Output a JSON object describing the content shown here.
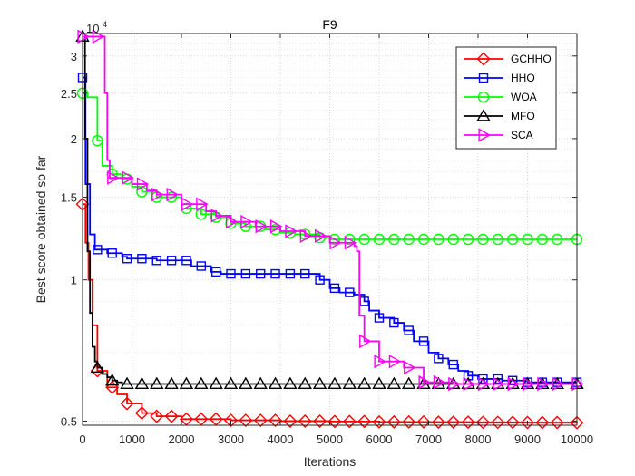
{
  "chart_data": {
    "type": "line",
    "title": "F9",
    "xlabel": "Iterations",
    "ylabel": "Best score obtained so far",
    "exponent_label": "10",
    "exponent_power": "4",
    "xlim": [
      0,
      10000
    ],
    "ylim": [
      4900,
      33500
    ],
    "yscale": "log",
    "grid": true,
    "legend_location": "top-right",
    "x_ticks": [
      0,
      1000,
      2000,
      3000,
      4000,
      5000,
      6000,
      7000,
      8000,
      9000,
      10000
    ],
    "x_tick_labels": [
      "0",
      "1000",
      "2000",
      "3000",
      "4000",
      "5000",
      "6000",
      "7000",
      "8000",
      "9000",
      "10000"
    ],
    "y_ticks": [
      5000,
      10000,
      15000,
      20000,
      25000,
      30000
    ],
    "y_tick_labels": [
      "0.5",
      "1",
      "1.5",
      "2",
      "2.5",
      "3"
    ],
    "series": [
      {
        "name": "GCHHO",
        "color": "#ff0000",
        "marker": "diamond",
        "x": [
          0,
          60,
          120,
          200,
          300,
          500,
          700,
          900,
          1200,
          1500,
          2000,
          3000,
          4000,
          5000,
          6000,
          7000,
          8000,
          9000,
          10000
        ],
        "y": [
          14500,
          12000,
          10000,
          8000,
          6400,
          5900,
          5700,
          5450,
          5200,
          5120,
          5050,
          5020,
          5000,
          4990,
          4980,
          4975,
          4970,
          4965,
          4960
        ]
      },
      {
        "name": "HHO",
        "color": "#0000ff",
        "marker": "square",
        "x": [
          0,
          60,
          150,
          250,
          500,
          600,
          800,
          900,
          1500,
          1900,
          2200,
          2600,
          2800,
          4800,
          5000,
          5200,
          5500,
          5700,
          5800,
          6000,
          6300,
          6500,
          6700,
          7000,
          7200,
          7400,
          7600,
          7800,
          8000,
          8500,
          9000,
          10000
        ],
        "y": [
          27000,
          16000,
          12500,
          11600,
          11400,
          11400,
          11200,
          11100,
          11000,
          11000,
          10700,
          10400,
          10300,
          10000,
          9600,
          9400,
          9300,
          9000,
          8600,
          8300,
          8100,
          7800,
          7400,
          7000,
          6800,
          6600,
          6400,
          6250,
          6150,
          6100,
          6050,
          6050
        ]
      },
      {
        "name": "WOA",
        "color": "#00ff00",
        "marker": "circle",
        "x": [
          0,
          100,
          300,
          400,
          600,
          800,
          1000,
          1200,
          1500,
          2000,
          2400,
          2700,
          3000,
          3300,
          3700,
          4000,
          4300,
          4800,
          5000,
          6000,
          7000,
          8000,
          9000,
          10000
        ],
        "y": [
          25000,
          24500,
          19800,
          17500,
          16800,
          16400,
          15800,
          15400,
          15000,
          14200,
          13800,
          13600,
          13200,
          13000,
          12800,
          12600,
          12500,
          12300,
          12200,
          12200,
          12200,
          12200,
          12200,
          12200
        ]
      },
      {
        "name": "MFO",
        "color": "#000000",
        "marker": "triangle-up",
        "x": [
          0,
          50,
          100,
          150,
          200,
          250,
          300,
          400,
          500,
          600,
          700,
          800,
          1000,
          10000
        ],
        "y": [
          33000,
          20000,
          11500,
          8500,
          7200,
          6700,
          6500,
          6300,
          6200,
          6100,
          6050,
          6000,
          6000,
          6000
        ]
      },
      {
        "name": "SCA",
        "color": "#ff00ff",
        "marker": "triangle-right",
        "x": [
          0,
          400,
          450,
          500,
          550,
          1000,
          1300,
          1500,
          2000,
          2500,
          2700,
          3000,
          3500,
          4000,
          4500,
          5000,
          5500,
          5550,
          5600,
          5700,
          6000,
          6500,
          6800,
          6900,
          7500,
          10000
        ],
        "y": [
          33000,
          33000,
          25000,
          18000,
          16500,
          16000,
          15500,
          15200,
          14500,
          14000,
          13700,
          13300,
          13000,
          12700,
          12400,
          12000,
          11800,
          11500,
          8400,
          7400,
          6700,
          6500,
          6500,
          6050,
          6000,
          6000
        ]
      }
    ]
  }
}
